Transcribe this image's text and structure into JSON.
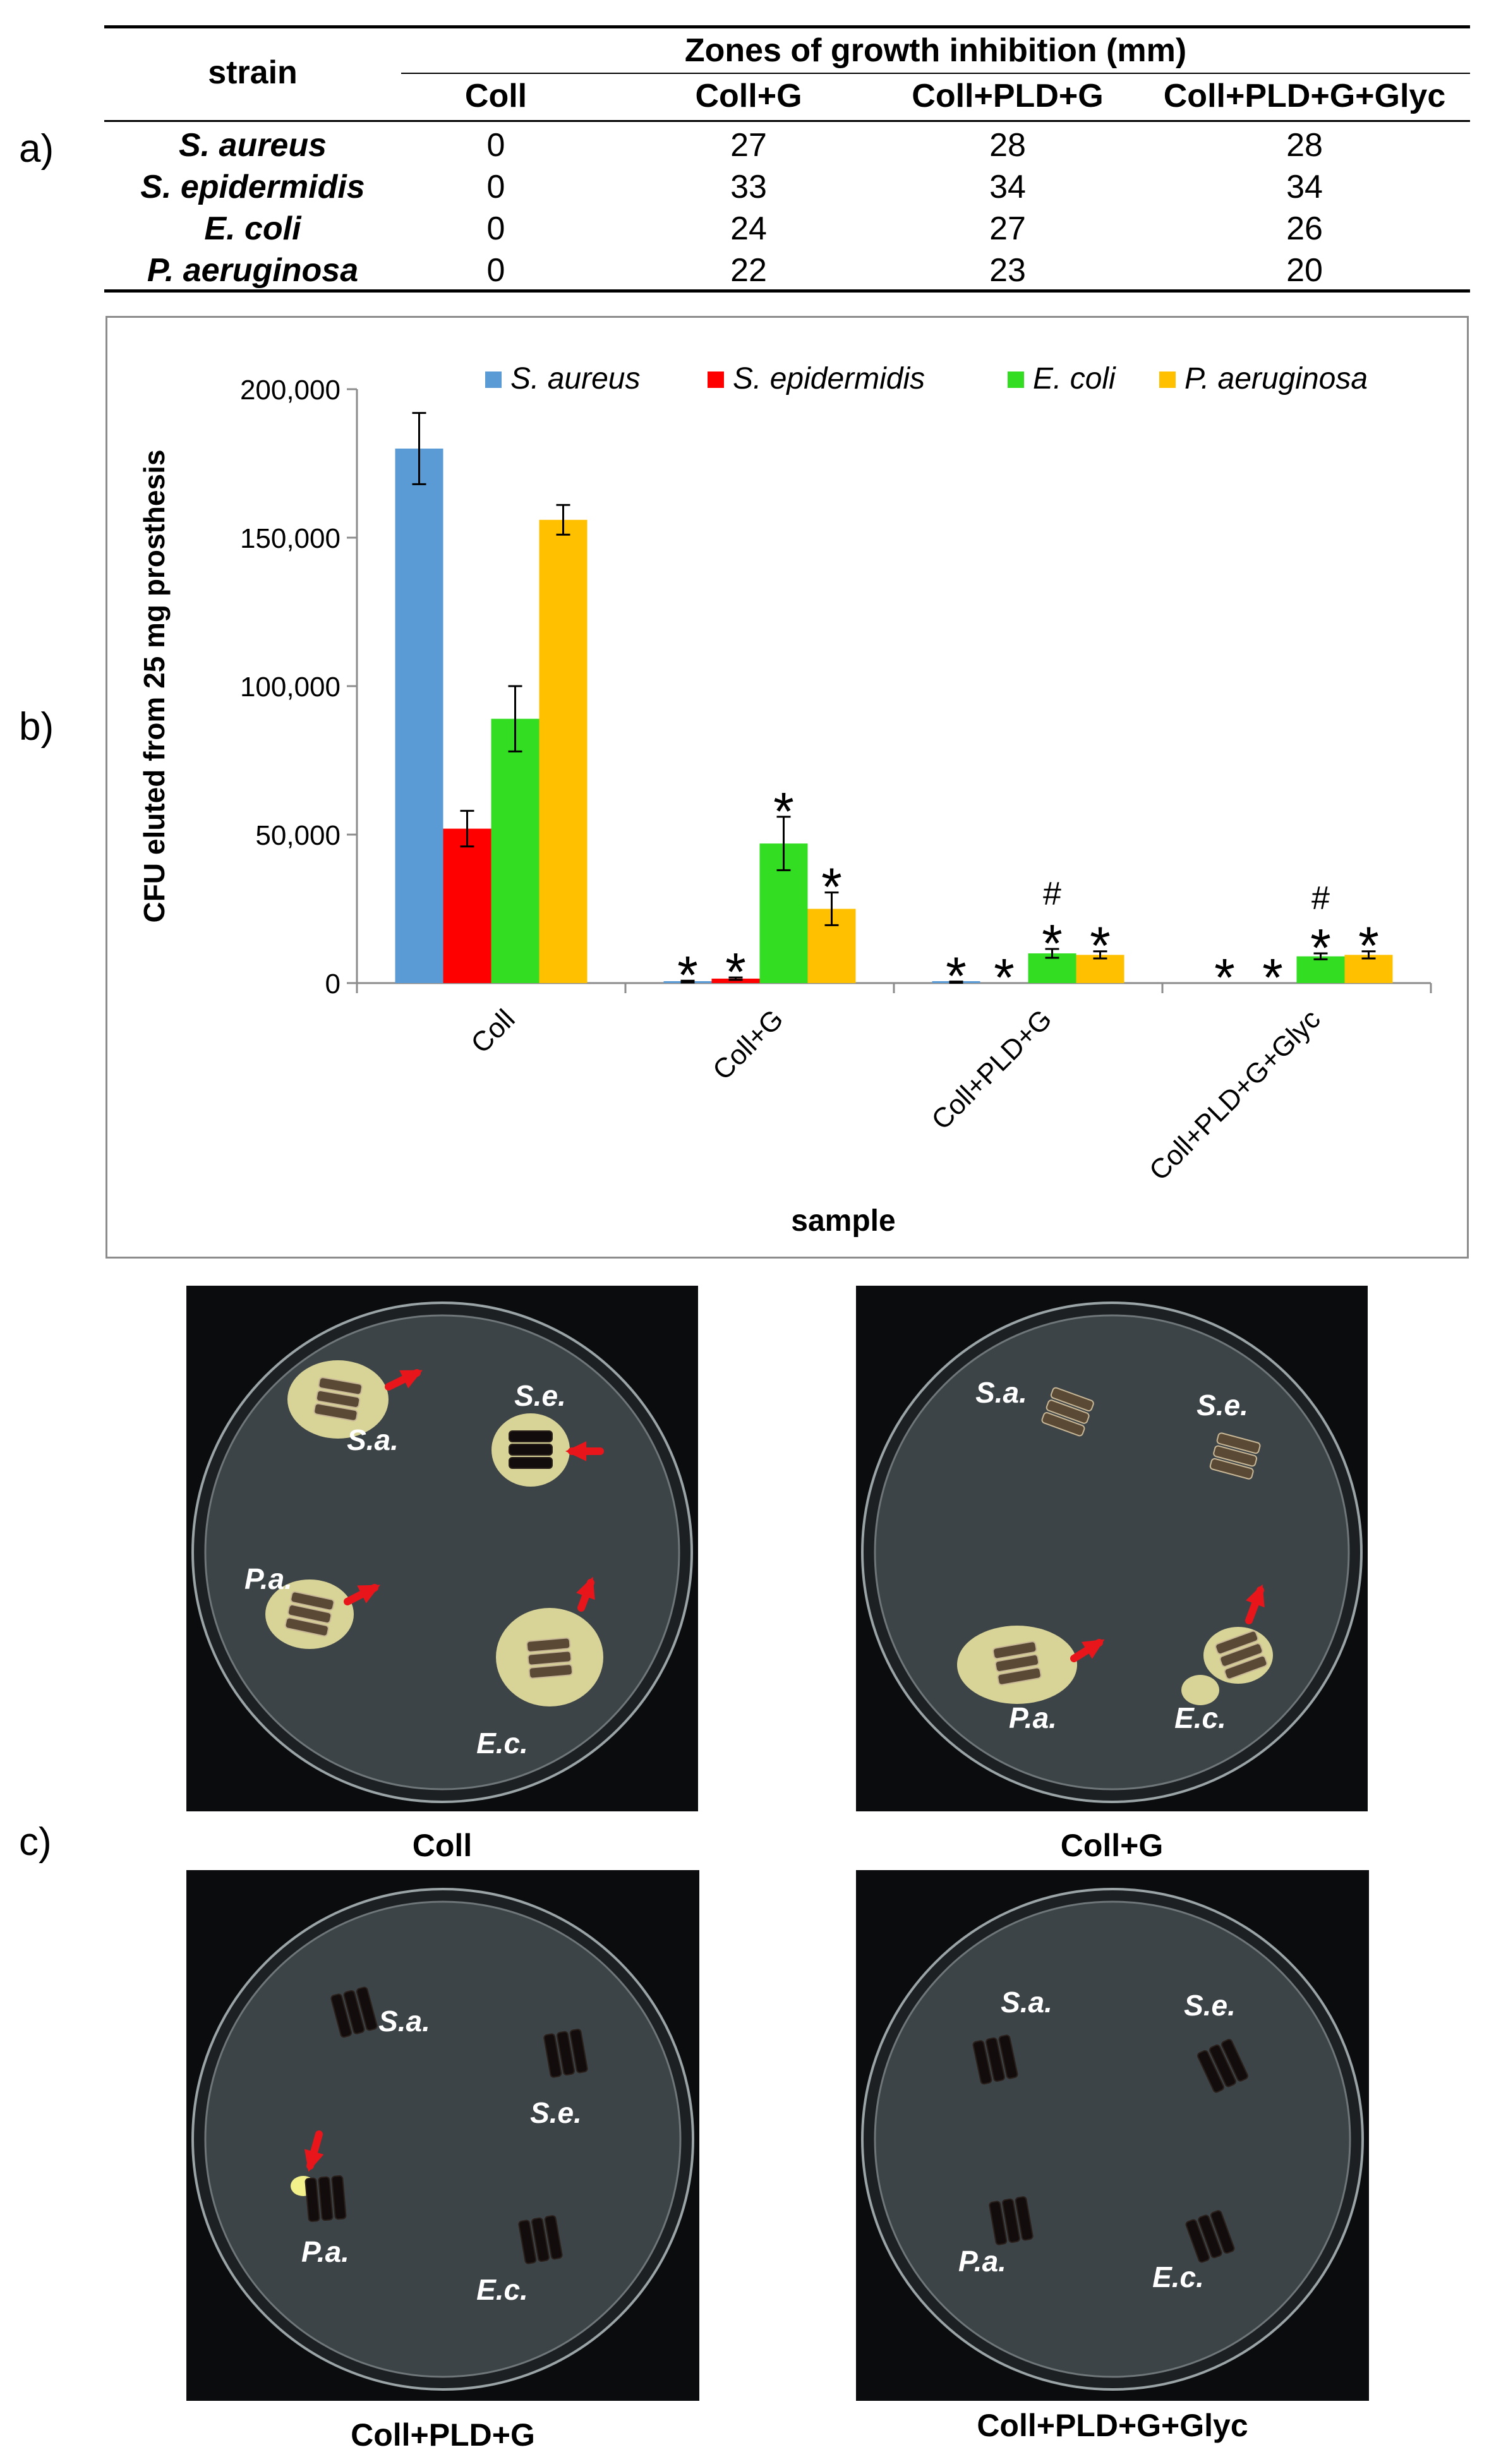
{
  "panels": [
    "a)",
    "b)",
    "c)"
  ],
  "table": {
    "strain_header": "strain",
    "group_header": "Zones of growth inhibition (mm)",
    "columns": [
      "Coll",
      "Coll+G",
      "Coll+PLD+G",
      "Coll+PLD+G+Glyc"
    ],
    "rows": [
      {
        "strain": "S. aureus",
        "values": [
          "0",
          "27",
          "28",
          "28"
        ]
      },
      {
        "strain": "S. epidermidis",
        "values": [
          "0",
          "33",
          "34",
          "34"
        ]
      },
      {
        "strain": "E. coli",
        "values": [
          "0",
          "24",
          "27",
          "26"
        ]
      },
      {
        "strain": "P. aeruginosa",
        "values": [
          "0",
          "22",
          "23",
          "20"
        ]
      }
    ]
  },
  "chart_data": {
    "type": "bar",
    "categories": [
      "Coll",
      "Coll+G",
      "Coll+PLD+G",
      "Coll+PLD+G+Glyc"
    ],
    "xlabel": "sample",
    "ylabel": "CFU eluted from 25 mg prosthesis",
    "ylim": [
      0,
      200000
    ],
    "yticks": [
      0,
      50000,
      100000,
      150000,
      200000
    ],
    "ytick_labels": [
      "0",
      "50,000",
      "100,000",
      "150,000",
      "200,000"
    ],
    "legend_position": "top",
    "grid": false,
    "series": [
      {
        "name": "S. aureus",
        "color": "#5b9bd5",
        "values": [
          180000,
          500,
          300,
          0
        ],
        "errors": [
          12000,
          300,
          200,
          0
        ],
        "markers": [
          "",
          "*",
          "*",
          "*"
        ]
      },
      {
        "name": "S. epidermidis",
        "color": "#ff0000",
        "values": [
          52000,
          1500,
          0,
          0
        ],
        "errors": [
          6000,
          400,
          0,
          0
        ],
        "markers": [
          "",
          "*",
          "*",
          "*"
        ]
      },
      {
        "name": "E. coli",
        "color": "#33dd22",
        "values": [
          89000,
          47000,
          10000,
          9000
        ],
        "errors": [
          11000,
          9000,
          1500,
          1000
        ],
        "markers": [
          "",
          "*",
          "#\n*",
          "#\n*"
        ]
      },
      {
        "name": "P. aeruginosa",
        "color": "#ffc000",
        "values": [
          156000,
          25000,
          9500,
          9500
        ],
        "errors": [
          5000,
          5500,
          1200,
          1200
        ],
        "markers": [
          "",
          "*",
          "*",
          "*"
        ]
      }
    ]
  },
  "plates": [
    {
      "label": "Coll",
      "tags": [
        "S.a.",
        "S.e.",
        "P.a.",
        "E.c."
      ]
    },
    {
      "label": "Coll+G",
      "tags": [
        "S.a.",
        "S.e.",
        "P.a.",
        "E.c."
      ]
    },
    {
      "label": "Coll+PLD+G",
      "tags": [
        "S.a.",
        "S.e.",
        "P.a.",
        "E.c."
      ]
    },
    {
      "label": "Coll+PLD+G+Glyc",
      "tags": [
        "S.a.",
        "S.e.",
        "P.a.",
        "E.c."
      ]
    }
  ],
  "colors": {
    "arrow": "#e8161b",
    "agar": "#3d4448",
    "halo": "#e9e3a0"
  }
}
